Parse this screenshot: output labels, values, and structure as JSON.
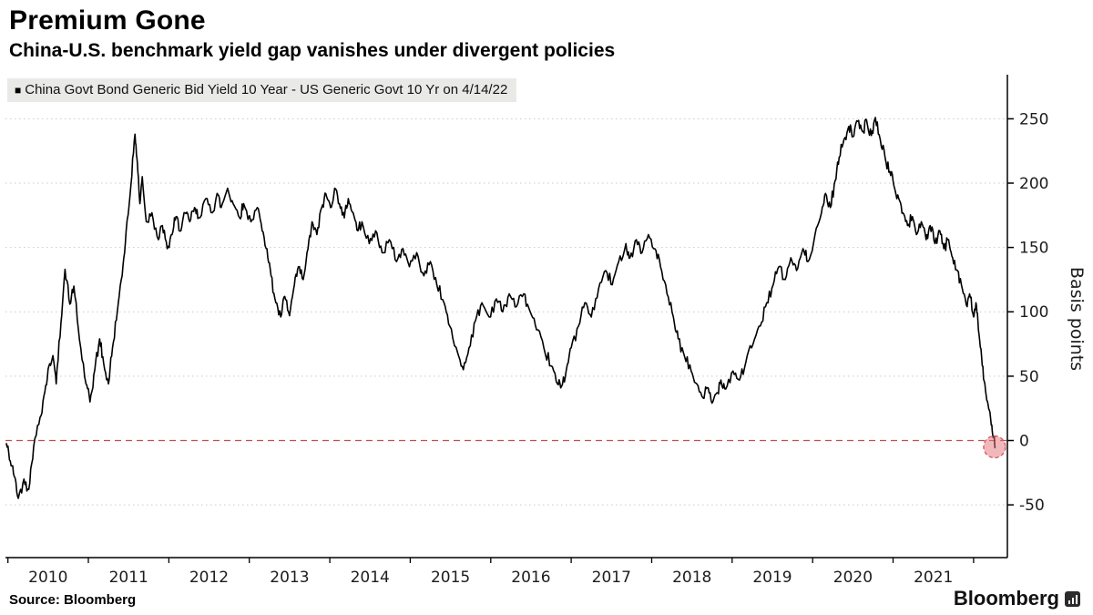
{
  "page": {
    "title": "Premium Gone",
    "subtitle": "China-U.S. benchmark yield gap vanishes under divergent policies"
  },
  "legend": {
    "swatch": "■",
    "label": "China Govt Bond Generic Bid Yield 10 Year - US Generic Govt 10 Yr on 4/14/22"
  },
  "footer": {
    "source": "Source: Bloomberg",
    "brand": "Bloomberg"
  },
  "chart_data": {
    "type": "line",
    "title": "Premium Gone",
    "subtitle": "China-U.S. benchmark yield gap vanishes under divergent policies",
    "y_axis_label": "Basis points",
    "x_domain": [
      2009.97,
      2022.42
    ],
    "y_domain": [
      -91,
      280
    ],
    "y_ticks": [
      -50,
      0,
      50,
      100,
      150,
      200,
      250
    ],
    "x_tick_years": [
      2010,
      2011,
      2012,
      2013,
      2014,
      2015,
      2016,
      2017,
      2018,
      2019,
      2020,
      2021
    ],
    "x_boundaries": [
      2010,
      2011,
      2012,
      2013,
      2014,
      2015,
      2016,
      2017,
      2018,
      2019,
      2020,
      2021,
      2022
    ],
    "grid": {
      "show": true,
      "color": "#c9c9c9",
      "style": "dotted"
    },
    "zero_line": {
      "value": 0,
      "color": "#c0504d",
      "style": "dashed"
    },
    "end_marker": {
      "x": 2022.26,
      "y": -5,
      "radius_px": 12,
      "fill": "#e4717a",
      "opacity": 0.5,
      "stroke": "#cf4a52"
    },
    "line_color": "#000000",
    "noise_bps": 5,
    "seed": 42,
    "legend_position": "top-left",
    "series": [
      {
        "name": "China Govt Bond Generic Bid Yield 10 Year - US Generic Govt 10 Yr on 4/14/22",
        "units": "basis points",
        "points": [
          [
            2009.98,
            -2
          ],
          [
            2010.03,
            -16
          ],
          [
            2010.08,
            -28
          ],
          [
            2010.13,
            -45
          ],
          [
            2010.2,
            -30
          ],
          [
            2010.26,
            -38
          ],
          [
            2010.32,
            -5
          ],
          [
            2010.4,
            18
          ],
          [
            2010.46,
            38
          ],
          [
            2010.51,
            58
          ],
          [
            2010.56,
            66
          ],
          [
            2010.6,
            44
          ],
          [
            2010.66,
            92
          ],
          [
            2010.71,
            133
          ],
          [
            2010.77,
            106
          ],
          [
            2010.82,
            120
          ],
          [
            2010.89,
            78
          ],
          [
            2010.97,
            44
          ],
          [
            2011.02,
            30
          ],
          [
            2011.08,
            55
          ],
          [
            2011.14,
            79
          ],
          [
            2011.19,
            60
          ],
          [
            2011.25,
            44
          ],
          [
            2011.3,
            72
          ],
          [
            2011.36,
            100
          ],
          [
            2011.42,
            128
          ],
          [
            2011.47,
            163
          ],
          [
            2011.53,
            199
          ],
          [
            2011.58,
            238
          ],
          [
            2011.61,
            215
          ],
          [
            2011.64,
            184
          ],
          [
            2011.67,
            205
          ],
          [
            2011.72,
            170
          ],
          [
            2011.79,
            177
          ],
          [
            2011.87,
            156
          ],
          [
            2011.92,
            167
          ],
          [
            2011.98,
            149
          ],
          [
            2012.04,
            160
          ],
          [
            2012.09,
            174
          ],
          [
            2012.15,
            163
          ],
          [
            2012.2,
            177
          ],
          [
            2012.26,
            170
          ],
          [
            2012.32,
            181
          ],
          [
            2012.37,
            173
          ],
          [
            2012.46,
            188
          ],
          [
            2012.54,
            177
          ],
          [
            2012.6,
            192
          ],
          [
            2012.65,
            181
          ],
          [
            2012.73,
            196
          ],
          [
            2012.8,
            184
          ],
          [
            2012.88,
            173
          ],
          [
            2012.93,
            184
          ],
          [
            2013.02,
            170
          ],
          [
            2013.1,
            181
          ],
          [
            2013.16,
            163
          ],
          [
            2013.22,
            149
          ],
          [
            2013.27,
            128
          ],
          [
            2013.33,
            107
          ],
          [
            2013.39,
            96
          ],
          [
            2013.44,
            112
          ],
          [
            2013.5,
            97
          ],
          [
            2013.56,
            121
          ],
          [
            2013.61,
            135
          ],
          [
            2013.67,
            125
          ],
          [
            2013.73,
            149
          ],
          [
            2013.78,
            170
          ],
          [
            2013.84,
            160
          ],
          [
            2013.9,
            181
          ],
          [
            2013.95,
            192
          ],
          [
            2014.01,
            181
          ],
          [
            2014.06,
            196
          ],
          [
            2014.12,
            184
          ],
          [
            2014.18,
            173
          ],
          [
            2014.23,
            188
          ],
          [
            2014.29,
            177
          ],
          [
            2014.35,
            163
          ],
          [
            2014.4,
            170
          ],
          [
            2014.49,
            153
          ],
          [
            2014.57,
            163
          ],
          [
            2014.65,
            146
          ],
          [
            2014.74,
            156
          ],
          [
            2014.83,
            139
          ],
          [
            2014.91,
            149
          ],
          [
            2014.99,
            135
          ],
          [
            2015.08,
            146
          ],
          [
            2015.17,
            128
          ],
          [
            2015.25,
            139
          ],
          [
            2015.33,
            121
          ],
          [
            2015.42,
            107
          ],
          [
            2015.49,
            89
          ],
          [
            2015.59,
            68
          ],
          [
            2015.66,
            55
          ],
          [
            2015.73,
            72
          ],
          [
            2015.81,
            93
          ],
          [
            2015.89,
            107
          ],
          [
            2015.98,
            96
          ],
          [
            2016.07,
            110
          ],
          [
            2016.15,
            100
          ],
          [
            2016.23,
            114
          ],
          [
            2016.32,
            104
          ],
          [
            2016.41,
            114
          ],
          [
            2016.49,
            100
          ],
          [
            2016.57,
            86
          ],
          [
            2016.66,
            72
          ],
          [
            2016.75,
            58
          ],
          [
            2016.83,
            44
          ],
          [
            2016.88,
            42
          ],
          [
            2016.94,
            55
          ],
          [
            2017.0,
            72
          ],
          [
            2017.09,
            89
          ],
          [
            2017.17,
            107
          ],
          [
            2017.25,
            96
          ],
          [
            2017.34,
            118
          ],
          [
            2017.43,
            132
          ],
          [
            2017.51,
            121
          ],
          [
            2017.59,
            139
          ],
          [
            2017.68,
            153
          ],
          [
            2017.73,
            142
          ],
          [
            2017.81,
            156
          ],
          [
            2017.88,
            146
          ],
          [
            2017.96,
            160
          ],
          [
            2018.04,
            149
          ],
          [
            2018.11,
            135
          ],
          [
            2018.19,
            114
          ],
          [
            2018.27,
            96
          ],
          [
            2018.33,
            79
          ],
          [
            2018.41,
            65
          ],
          [
            2018.49,
            54
          ],
          [
            2018.56,
            44
          ],
          [
            2018.64,
            33
          ],
          [
            2018.69,
            41
          ],
          [
            2018.75,
            29
          ],
          [
            2018.81,
            37
          ],
          [
            2018.86,
            47
          ],
          [
            2018.92,
            40
          ],
          [
            2019.01,
            54
          ],
          [
            2019.09,
            47
          ],
          [
            2019.17,
            61
          ],
          [
            2019.26,
            75
          ],
          [
            2019.35,
            89
          ],
          [
            2019.43,
            107
          ],
          [
            2019.51,
            121
          ],
          [
            2019.58,
            135
          ],
          [
            2019.66,
            125
          ],
          [
            2019.73,
            142
          ],
          [
            2019.8,
            132
          ],
          [
            2019.88,
            149
          ],
          [
            2019.94,
            139
          ],
          [
            2020.03,
            160
          ],
          [
            2020.11,
            177
          ],
          [
            2020.16,
            192
          ],
          [
            2020.22,
            181
          ],
          [
            2020.28,
            202
          ],
          [
            2020.33,
            220
          ],
          [
            2020.39,
            234
          ],
          [
            2020.45,
            244
          ],
          [
            2020.5,
            236
          ],
          [
            2020.56,
            248
          ],
          [
            2020.62,
            240
          ],
          [
            2020.67,
            249
          ],
          [
            2020.73,
            237
          ],
          [
            2020.78,
            251
          ],
          [
            2020.84,
            234
          ],
          [
            2020.9,
            220
          ],
          [
            2020.96,
            209
          ],
          [
            2021.01,
            198
          ],
          [
            2021.07,
            188
          ],
          [
            2021.12,
            177
          ],
          [
            2021.18,
            167
          ],
          [
            2021.24,
            174
          ],
          [
            2021.29,
            160
          ],
          [
            2021.35,
            170
          ],
          [
            2021.41,
            156
          ],
          [
            2021.46,
            167
          ],
          [
            2021.52,
            153
          ],
          [
            2021.58,
            163
          ],
          [
            2021.63,
            149
          ],
          [
            2021.69,
            156
          ],
          [
            2021.74,
            142
          ],
          [
            2021.8,
            132
          ],
          [
            2021.86,
            118
          ],
          [
            2021.92,
            104
          ],
          [
            2021.95,
            114
          ],
          [
            2022.0,
            96
          ],
          [
            2022.03,
            107
          ],
          [
            2022.06,
            86
          ],
          [
            2022.1,
            65
          ],
          [
            2022.14,
            44
          ],
          [
            2022.18,
            28
          ],
          [
            2022.22,
            12
          ],
          [
            2022.25,
            3
          ],
          [
            2022.27,
            -6
          ]
        ]
      }
    ]
  }
}
